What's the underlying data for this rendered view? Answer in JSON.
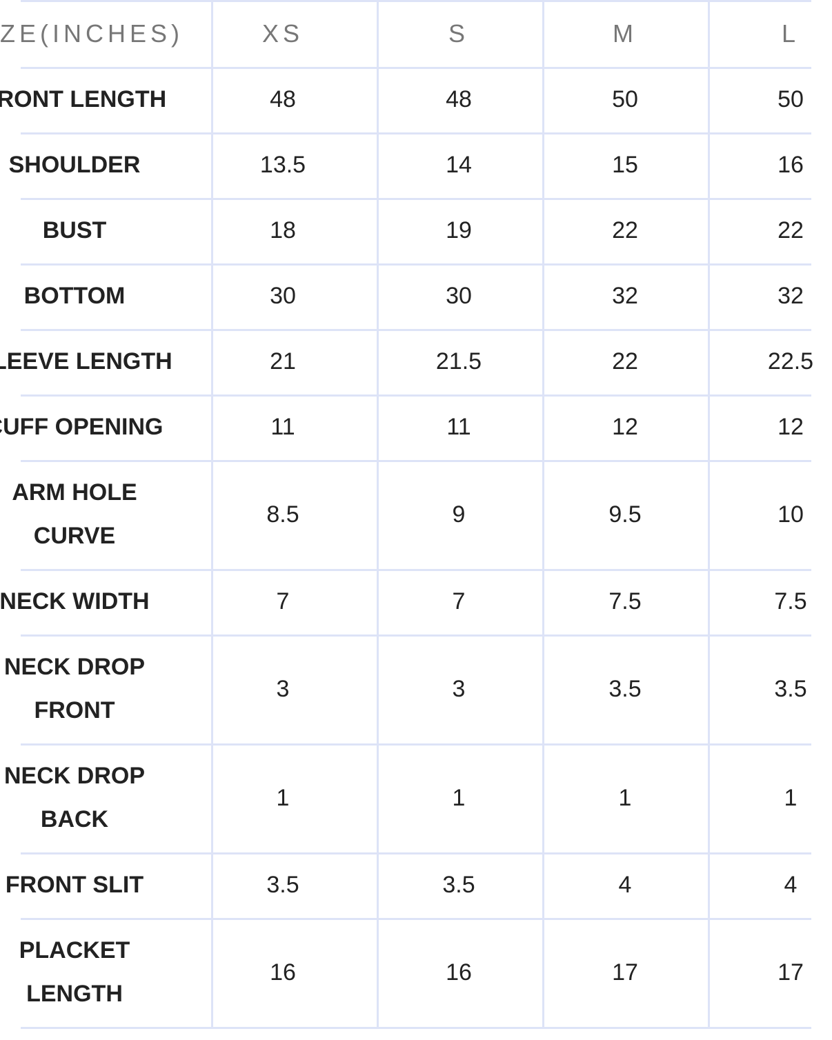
{
  "header": {
    "label": "SIZE(INCHES)",
    "sizes": [
      "XS",
      "S",
      "M",
      "L"
    ]
  },
  "rows": [
    {
      "label": "FRONT LENGTH",
      "values": [
        "48",
        "48",
        "50",
        "50"
      ]
    },
    {
      "label": "SHOULDER",
      "values": [
        "13.5",
        "14",
        "15",
        "16"
      ]
    },
    {
      "label": "BUST",
      "values": [
        "18",
        "19",
        "22",
        "22"
      ]
    },
    {
      "label": "BOTTOM",
      "values": [
        "30",
        "30",
        "32",
        "32"
      ]
    },
    {
      "label": "SLEEVE LENGTH",
      "values": [
        "21",
        "21.5",
        "22",
        "22.5"
      ]
    },
    {
      "label": "CUFF OPENING",
      "values": [
        "11",
        "11",
        "12",
        "12"
      ]
    },
    {
      "label": "ARM HOLE\nCURVE",
      "values": [
        "8.5",
        "9",
        "9.5",
        "10"
      ]
    },
    {
      "label": "NECK WIDTH",
      "values": [
        "7",
        "7",
        "7.5",
        "7.5"
      ]
    },
    {
      "label": "NECK DROP\nFRONT",
      "values": [
        "3",
        "3",
        "3.5",
        "3.5"
      ]
    },
    {
      "label": "NECK DROP\nBACK",
      "values": [
        "1",
        "1",
        "1",
        "1"
      ]
    },
    {
      "label": "FRONT SLIT",
      "values": [
        "3.5",
        "3.5",
        "4",
        "4"
      ]
    },
    {
      "label": "PLACKET\nLENGTH",
      "values": [
        "16",
        "16",
        "17",
        "17"
      ]
    }
  ],
  "colors": {
    "grid": "#dde3f7",
    "text": "#222222",
    "header_text": "#777777"
  }
}
